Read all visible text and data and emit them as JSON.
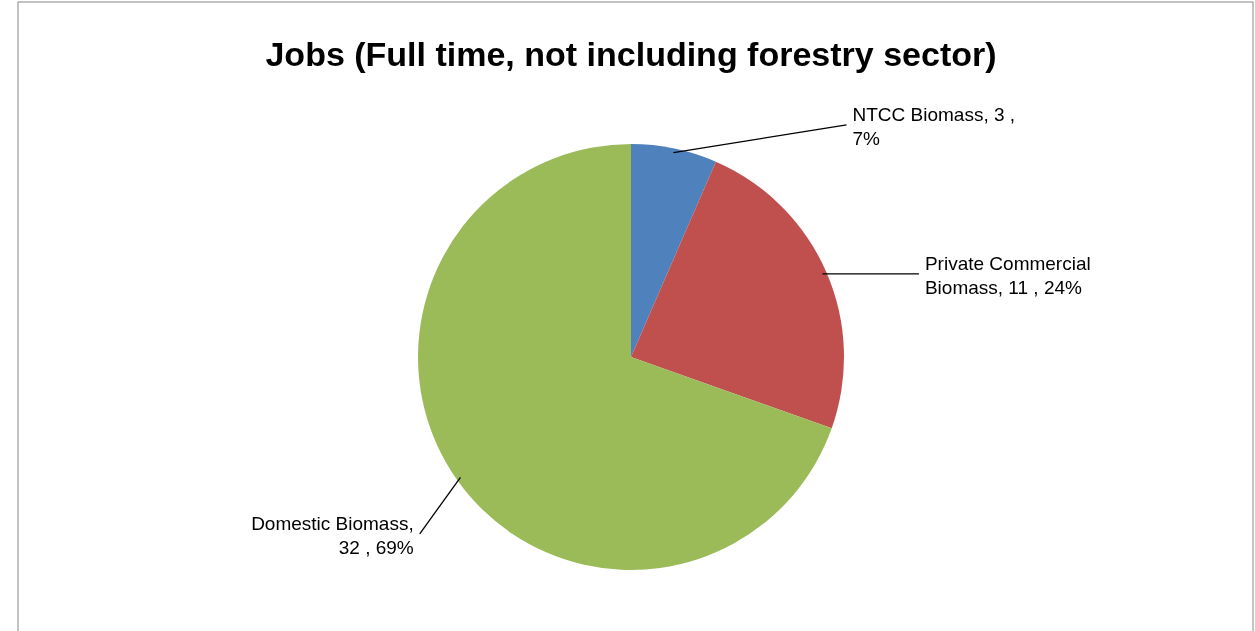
{
  "chart_data": {
    "type": "pie",
    "title": "Jobs  (Full time, not including forestry sector)",
    "categories": [
      "NTCC Biomass",
      "Private Commercial Biomass",
      "Domestic Biomass"
    ],
    "values": [
      3,
      11,
      32
    ],
    "value_labels": [
      ", 3 , 7%",
      ", 11 , 24%",
      ", 32 , 69%"
    ],
    "colors": [
      "#4f81bd",
      "#c0504d",
      "#9bbb59"
    ],
    "legend": false
  }
}
